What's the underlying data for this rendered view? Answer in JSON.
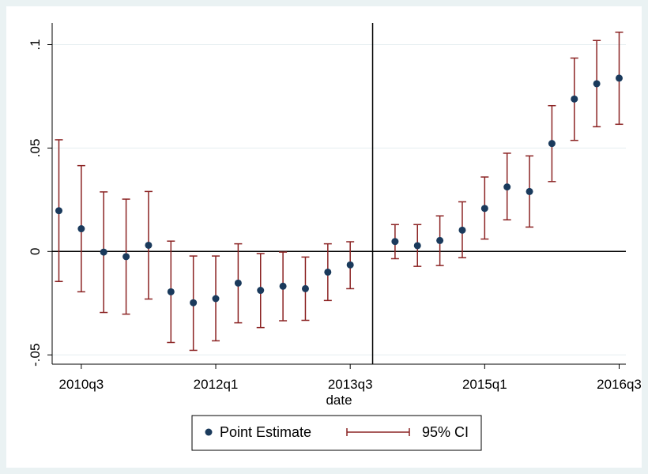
{
  "chart_data": {
    "type": "scatter",
    "title": "",
    "xlabel": "date",
    "ylabel": "",
    "x_ticks": [
      {
        "value": 202,
        "label": "2010q3"
      },
      {
        "value": 208,
        "label": "2012q1"
      },
      {
        "value": 214,
        "label": "2013q3"
      },
      {
        "value": 220,
        "label": "2015q1"
      },
      {
        "value": 226,
        "label": "2016q3"
      }
    ],
    "y_ticks": [
      {
        "value": -0.05,
        "label": "-.05"
      },
      {
        "value": 0,
        "label": "0"
      },
      {
        "value": 0.05,
        "label": ".05"
      },
      {
        "value": 0.1,
        "label": ".1"
      }
    ],
    "xlim": [
      200.7,
      226.3
    ],
    "ylim": [
      -0.0545,
      0.1105
    ],
    "reference_lines": {
      "x": 215,
      "y": 0
    },
    "grid": "horizontal",
    "legend_position": "bottom",
    "colors": {
      "point": "#1a3a5c",
      "ci": "#8b2323",
      "grid": "#e6eef0",
      "background": "#eaf2f3",
      "plot_background": "#ffffff"
    },
    "series": [
      {
        "name": "Point Estimate",
        "x": [
          201,
          202,
          203,
          204,
          205,
          206,
          207,
          208,
          209,
          210,
          211,
          212,
          213,
          214,
          216,
          217,
          218,
          219,
          220,
          221,
          222,
          223,
          224,
          225,
          226
        ],
        "values": [
          0.0197,
          0.011,
          -0.0003,
          -0.0025,
          0.003,
          -0.0195,
          -0.0248,
          -0.0228,
          -0.0153,
          -0.0188,
          -0.0168,
          -0.018,
          -0.01,
          -0.0065,
          0.0048,
          0.0028,
          0.0053,
          0.0103,
          0.0208,
          0.0312,
          0.029,
          0.0522,
          0.0737,
          0.0811,
          0.0838
        ]
      },
      {
        "name": "95% CI",
        "x": [
          201,
          202,
          203,
          204,
          205,
          206,
          207,
          208,
          209,
          210,
          211,
          212,
          213,
          214,
          216,
          217,
          218,
          219,
          220,
          221,
          222,
          223,
          224,
          225,
          226
        ],
        "lower": [
          -0.0145,
          -0.0195,
          -0.0295,
          -0.0303,
          -0.023,
          -0.044,
          -0.0478,
          -0.0432,
          -0.0345,
          -0.0368,
          -0.0335,
          -0.0333,
          -0.0237,
          -0.018,
          -0.0035,
          -0.0072,
          -0.0068,
          -0.003,
          0.006,
          0.0153,
          0.0118,
          0.0338,
          0.0537,
          0.0603,
          0.0615
        ],
        "upper": [
          0.054,
          0.0415,
          0.0288,
          0.0253,
          0.029,
          0.005,
          -0.0022,
          -0.0022,
          0.0037,
          -0.001,
          -0.0003,
          -0.0027,
          0.0037,
          0.0047,
          0.013,
          0.013,
          0.0172,
          0.024,
          0.036,
          0.0475,
          0.0462,
          0.0705,
          0.0935,
          0.102,
          0.106
        ]
      }
    ]
  }
}
